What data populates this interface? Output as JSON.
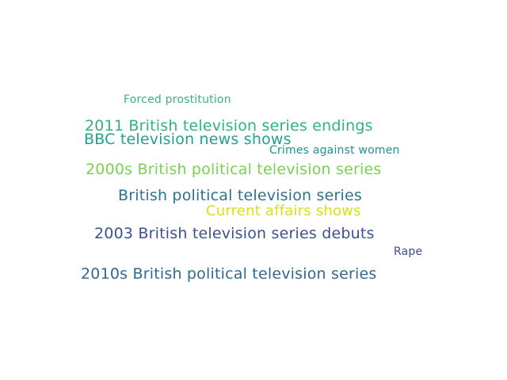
{
  "words": [
    {
      "text": "Forced prostitution",
      "color": "#35b779"
    },
    {
      "text": "2011 British television series endings",
      "color": "#2fb47c"
    },
    {
      "text": "BBC television news shows",
      "color": "#20a386"
    },
    {
      "text": "Crimes against women",
      "color": "#21918c"
    },
    {
      "text": "2000s British political television series",
      "color": "#7ad151"
    },
    {
      "text": "British political television series",
      "color": "#2c728e"
    },
    {
      "text": "Current affairs shows",
      "color": "#d2e21b"
    },
    {
      "text": "2003 British television series debuts",
      "color": "#3b528b"
    },
    {
      "text": "Rape",
      "color": "#3e4a89"
    },
    {
      "text": "2010s British political television series",
      "color": "#31688e"
    }
  ]
}
